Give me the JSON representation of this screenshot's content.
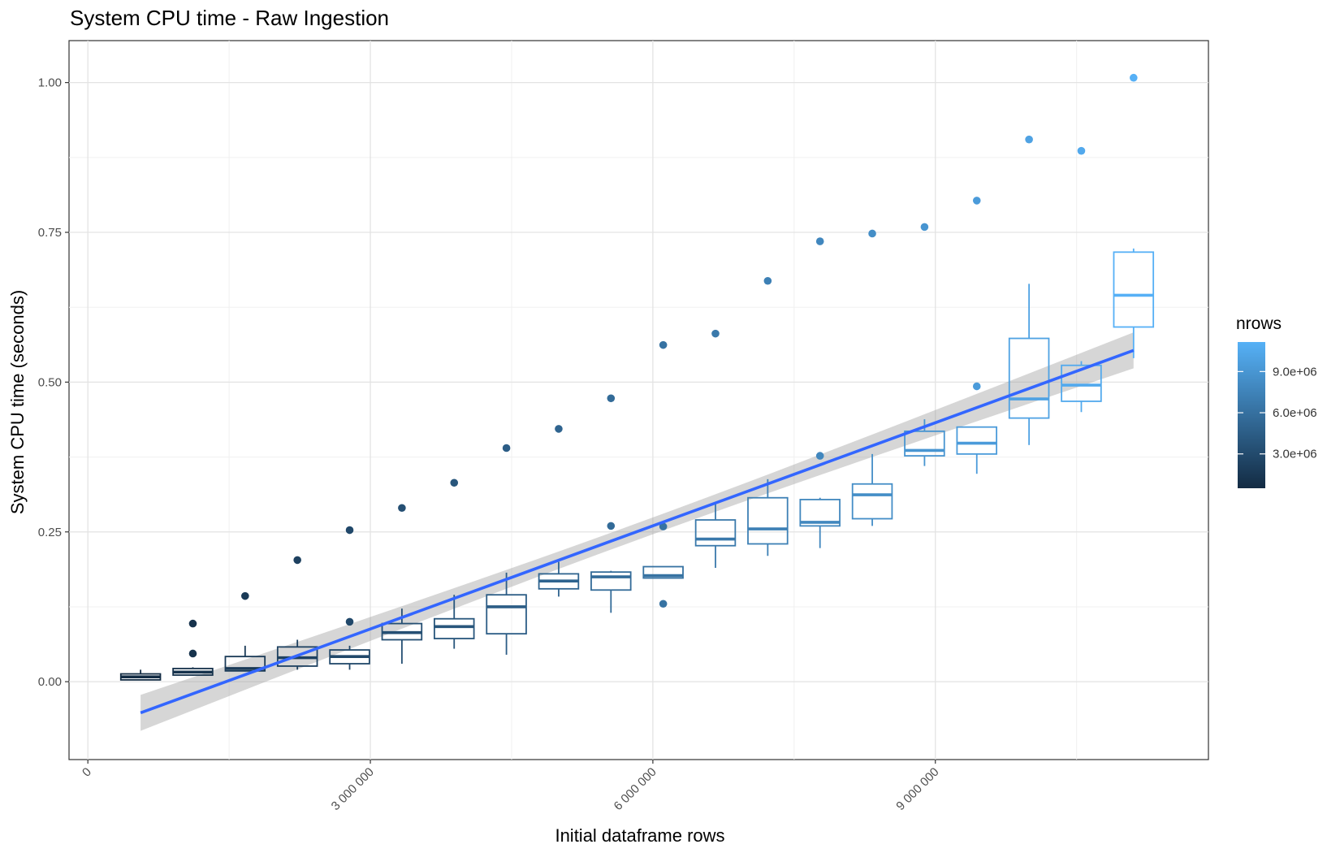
{
  "chart_data": {
    "type": "boxplot",
    "title": "System CPU time - Raw Ingestion",
    "xlabel": "Initial dataframe rows",
    "ylabel": "System CPU time (seconds)",
    "xlim": [
      -200000,
      11900000
    ],
    "ylim": [
      -0.13,
      1.07
    ],
    "x_ticks": [
      0,
      3000000,
      6000000,
      9000000
    ],
    "x_tick_labels": [
      "0",
      "3 000 000",
      "6 000 000",
      "9 000 000"
    ],
    "y_ticks": [
      0,
      0.25,
      0.5,
      0.75,
      1.0
    ],
    "y_tick_labels": [
      "0.00",
      "0.25",
      "0.50",
      "0.75",
      "1.00"
    ],
    "grid": true,
    "legend": {
      "title": "nrows",
      "position": "right",
      "type": "colorbar",
      "range": [
        500000,
        11150000
      ],
      "ticks": [
        3000000,
        6000000,
        9000000
      ],
      "tick_labels": [
        "3.0e+06",
        "6.0e+06",
        "9.0e+06"
      ],
      "color_low": "#132b43",
      "color_high": "#56b1f7"
    },
    "boxes": [
      {
        "x": 560000,
        "whisker_low": 0.003,
        "q1": 0.003,
        "median": 0.008,
        "q3": 0.013,
        "whisker_high": 0.02
      },
      {
        "x": 1115000,
        "whisker_low": 0.01,
        "q1": 0.011,
        "median": 0.016,
        "q3": 0.022,
        "whisker_high": 0.024
      },
      {
        "x": 1670000,
        "whisker_low": 0.017,
        "q1": 0.018,
        "median": 0.022,
        "q3": 0.042,
        "whisker_high": 0.06
      },
      {
        "x": 2225000,
        "whisker_low": 0.02,
        "q1": 0.026,
        "median": 0.04,
        "q3": 0.058,
        "whisker_high": 0.07
      },
      {
        "x": 2780000,
        "whisker_low": 0.02,
        "q1": 0.03,
        "median": 0.042,
        "q3": 0.053,
        "whisker_high": 0.06
      },
      {
        "x": 3335000,
        "whisker_low": 0.03,
        "q1": 0.07,
        "median": 0.082,
        "q3": 0.097,
        "whisker_high": 0.122
      },
      {
        "x": 3890000,
        "whisker_low": 0.055,
        "q1": 0.072,
        "median": 0.092,
        "q3": 0.105,
        "whisker_high": 0.145
      },
      {
        "x": 4445000,
        "whisker_low": 0.045,
        "q1": 0.08,
        "median": 0.125,
        "q3": 0.145,
        "whisker_high": 0.182
      },
      {
        "x": 5000000,
        "whisker_low": 0.142,
        "q1": 0.155,
        "median": 0.168,
        "q3": 0.18,
        "whisker_high": 0.2
      },
      {
        "x": 5555000,
        "whisker_low": 0.115,
        "q1": 0.153,
        "median": 0.175,
        "q3": 0.183,
        "whisker_high": 0.185
      },
      {
        "x": 6110000,
        "whisker_low": 0.173,
        "q1": 0.173,
        "median": 0.177,
        "q3": 0.192,
        "whisker_high": 0.192
      },
      {
        "x": 6665000,
        "whisker_low": 0.19,
        "q1": 0.227,
        "median": 0.238,
        "q3": 0.27,
        "whisker_high": 0.297
      },
      {
        "x": 7220000,
        "whisker_low": 0.21,
        "q1": 0.23,
        "median": 0.255,
        "q3": 0.307,
        "whisker_high": 0.338
      },
      {
        "x": 7775000,
        "whisker_low": 0.223,
        "q1": 0.26,
        "median": 0.266,
        "q3": 0.304,
        "whisker_high": 0.307
      },
      {
        "x": 8330000,
        "whisker_low": 0.26,
        "q1": 0.272,
        "median": 0.312,
        "q3": 0.33,
        "whisker_high": 0.38
      },
      {
        "x": 8885000,
        "whisker_low": 0.36,
        "q1": 0.377,
        "median": 0.386,
        "q3": 0.418,
        "whisker_high": 0.438
      },
      {
        "x": 9440000,
        "whisker_low": 0.347,
        "q1": 0.38,
        "median": 0.398,
        "q3": 0.425,
        "whisker_high": 0.425
      },
      {
        "x": 9995000,
        "whisker_low": 0.395,
        "q1": 0.44,
        "median": 0.472,
        "q3": 0.573,
        "whisker_high": 0.664
      },
      {
        "x": 10550000,
        "whisker_low": 0.45,
        "q1": 0.468,
        "median": 0.495,
        "q3": 0.528,
        "whisker_high": 0.535
      },
      {
        "x": 11105000,
        "whisker_low": 0.54,
        "q1": 0.592,
        "median": 0.645,
        "q3": 0.717,
        "whisker_high": 0.723
      }
    ],
    "outliers": [
      {
        "x": 1115000,
        "y": 0.097
      },
      {
        "x": 1115000,
        "y": 0.047
      },
      {
        "x": 1670000,
        "y": 0.143
      },
      {
        "x": 2225000,
        "y": 0.203
      },
      {
        "x": 2780000,
        "y": 0.253
      },
      {
        "x": 2780000,
        "y": 0.1
      },
      {
        "x": 3335000,
        "y": 0.29
      },
      {
        "x": 3890000,
        "y": 0.332
      },
      {
        "x": 4445000,
        "y": 0.39
      },
      {
        "x": 5000000,
        "y": 0.422
      },
      {
        "x": 5555000,
        "y": 0.473
      },
      {
        "x": 5555000,
        "y": 0.26
      },
      {
        "x": 6110000,
        "y": 0.562
      },
      {
        "x": 6110000,
        "y": 0.259
      },
      {
        "x": 6110000,
        "y": 0.13
      },
      {
        "x": 6665000,
        "y": 0.581
      },
      {
        "x": 7220000,
        "y": 0.669
      },
      {
        "x": 7775000,
        "y": 0.735
      },
      {
        "x": 7775000,
        "y": 0.377
      },
      {
        "x": 8330000,
        "y": 0.748
      },
      {
        "x": 8885000,
        "y": 0.759
      },
      {
        "x": 9440000,
        "y": 0.803
      },
      {
        "x": 9440000,
        "y": 0.493
      },
      {
        "x": 9995000,
        "y": 0.905
      },
      {
        "x": 10550000,
        "y": 0.886
      },
      {
        "x": 11105000,
        "y": 1.008
      }
    ],
    "trend": {
      "type": "linear",
      "x": [
        560000,
        11105000
      ],
      "y": [
        -0.052,
        0.553
      ],
      "ci_halfwidth_ends": 0.03,
      "ci_halfwidth_mid": 0.014,
      "color": "#3366ff",
      "ci_color": "#999999"
    }
  }
}
